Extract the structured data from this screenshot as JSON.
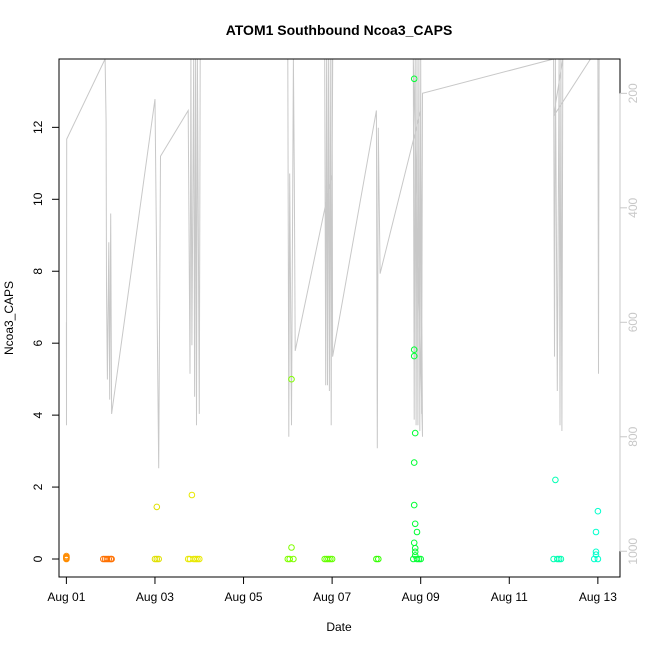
{
  "chart_data": {
    "type": "scatter",
    "title": "ATOM1 Southbound Ncoa3_CAPS",
    "xlabel": "Date",
    "ylabel": "Ncoa3_CAPS",
    "x_range": [
      "2020-07-31T20:00",
      "2020-08-13T12:00"
    ],
    "x_ticks": [
      "2020-08-01",
      "2020-08-03",
      "2020-08-05",
      "2020-08-07",
      "2020-08-09",
      "2020-08-11",
      "2020-08-13"
    ],
    "x_tick_labels": [
      "Aug 01",
      "Aug 03",
      "Aug 05",
      "Aug 07",
      "Aug 09",
      "Aug 11",
      "Aug 13"
    ],
    "y_range": [
      -0.5,
      13.9
    ],
    "y_ticks": [
      0,
      2,
      4,
      6,
      8,
      10,
      12
    ],
    "y2": {
      "reversed": true,
      "range": [
        1045,
        140
      ],
      "ticks": [
        200,
        400,
        600,
        800,
        1000
      ],
      "color": "#c8c8c8"
    },
    "grid": false,
    "depth_trace": {
      "color": "#c8c8c8",
      "points": [
        [
          "2020-08-01T00:00",
          600
        ],
        [
          "2020-08-01T00:05",
          780
        ],
        [
          "2020-08-01T00:10",
          280
        ],
        [
          "2020-08-01T21:00",
          140
        ],
        [
          "2020-08-01T21:30",
          250
        ],
        [
          "2020-08-01T21:45",
          540
        ],
        [
          "2020-08-01T22:15",
          700
        ],
        [
          "2020-08-01T23:00",
          460
        ],
        [
          "2020-08-01T23:30",
          735
        ],
        [
          "2020-08-02T00:00",
          410
        ],
        [
          "2020-08-02T00:30",
          760
        ],
        [
          "2020-08-03T00:00",
          210
        ],
        [
          "2020-08-03T02:00",
          855
        ],
        [
          "2020-08-03T03:00",
          310
        ],
        [
          "2020-08-03T18:00",
          230
        ],
        [
          "2020-08-03T19:00",
          690
        ],
        [
          "2020-08-03T19:30",
          140
        ],
        [
          "2020-08-03T20:00",
          640
        ],
        [
          "2020-08-03T21:00",
          140
        ],
        [
          "2020-08-03T21:30",
          730
        ],
        [
          "2020-08-03T22:00",
          140
        ],
        [
          "2020-08-03T22:30",
          780
        ],
        [
          "2020-08-03T23:00",
          140
        ],
        [
          "2020-08-04T00:00",
          760
        ],
        [
          "2020-08-04T00:30",
          140
        ],
        [
          "2020-08-06T00:00",
          140
        ],
        [
          "2020-08-06T00:30",
          800
        ],
        [
          "2020-08-06T01:00",
          340
        ],
        [
          "2020-08-06T02:00",
          780
        ],
        [
          "2020-08-06T03:00",
          140
        ],
        [
          "2020-08-06T03:30",
          345
        ],
        [
          "2020-08-06T04:00",
          650
        ],
        [
          "2020-08-07T00:00",
          340
        ],
        [
          "2020-08-07T00:20",
          140
        ],
        [
          "2020-08-06T20:00",
          140
        ],
        [
          "2020-08-06T20:30",
          710
        ],
        [
          "2020-08-06T21:00",
          140
        ],
        [
          "2020-08-06T21:30",
          710
        ],
        [
          "2020-08-06T22:00",
          140
        ],
        [
          "2020-08-06T22:30",
          720
        ],
        [
          "2020-08-06T23:00",
          140
        ],
        [
          "2020-08-06T23:30",
          780
        ],
        [
          "2020-08-07T00:00",
          140
        ],
        [
          "2020-08-07T00:15",
          660
        ],
        [
          "2020-08-08T00:00",
          230
        ],
        [
          "2020-08-08T00:30",
          820
        ],
        [
          "2020-08-08T01:00",
          260
        ],
        [
          "2020-08-08T02:00",
          515
        ],
        [
          "2020-08-09T00:00",
          230
        ],
        [
          "2020-08-09T01:00",
          800
        ],
        [
          "2020-08-08T20:00",
          140
        ],
        [
          "2020-08-08T20:30",
          770
        ],
        [
          "2020-08-08T21:00",
          140
        ],
        [
          "2020-08-08T21:30",
          780
        ],
        [
          "2020-08-08T22:00",
          140
        ],
        [
          "2020-08-08T22:30",
          780
        ],
        [
          "2020-08-08T23:00",
          140
        ],
        [
          "2020-08-08T23:30",
          790
        ],
        [
          "2020-08-09T00:00",
          140
        ],
        [
          "2020-08-09T00:30",
          760
        ],
        [
          "2020-08-09T01:00",
          200
        ],
        [
          "2020-08-12T00:00",
          140
        ],
        [
          "2020-08-12T00:30",
          660
        ],
        [
          "2020-08-12T01:00",
          140
        ],
        [
          "2020-08-12T02:00",
          720
        ],
        [
          "2020-08-12T03:00",
          140
        ],
        [
          "2020-08-12T03:30",
          780
        ],
        [
          "2020-08-12T04:00",
          140
        ],
        [
          "2020-08-12T04:30",
          790
        ],
        [
          "2020-08-12T05:00",
          140
        ],
        [
          "2020-08-12T00:00",
          240
        ],
        [
          "2020-08-12T20:00",
          140
        ],
        [
          "2020-08-12T21:00",
          140
        ],
        [
          "2020-08-12T22:00",
          140
        ],
        [
          "2020-08-12T23:00",
          140
        ],
        [
          "2020-08-13T00:00",
          140
        ],
        [
          "2020-08-13T00:20",
          690
        ],
        [
          "2020-08-13T00:40",
          140
        ]
      ]
    },
    "series": [
      {
        "color": "#ff8c00",
        "points": [
          [
            "2020-08-01T00:00",
            0.05
          ],
          [
            "2020-08-01T00:00",
            0.0
          ],
          [
            "2020-08-01T00:00",
            0.02
          ],
          [
            "2020-08-01T00:00",
            0.08
          ],
          [
            "2020-08-01T00:00",
            0.04
          ]
        ]
      },
      {
        "color": "#ff7000",
        "points": [
          [
            "2020-08-01T20:00",
            0.0
          ],
          [
            "2020-08-01T21:00",
            0.0
          ],
          [
            "2020-08-01T22:00",
            0.0
          ],
          [
            "2020-08-01T23:00",
            0.0
          ],
          [
            "2020-08-02T00:00",
            0.0
          ],
          [
            "2020-08-02T00:30",
            0.0
          ]
        ]
      },
      {
        "color": "#e0e000",
        "points": [
          [
            "2020-08-03T00:00",
            0.0
          ],
          [
            "2020-08-03T01:00",
            0.0
          ],
          [
            "2020-08-03T01:00",
            1.45
          ],
          [
            "2020-08-03T02:00",
            0.0
          ]
        ]
      },
      {
        "color": "#e8e800",
        "points": [
          [
            "2020-08-03T18:00",
            0.0
          ],
          [
            "2020-08-03T19:00",
            0.0
          ],
          [
            "2020-08-03T20:00",
            1.78
          ],
          [
            "2020-08-03T21:00",
            0.0
          ],
          [
            "2020-08-03T22:00",
            0.0
          ],
          [
            "2020-08-03T23:00",
            0.0
          ],
          [
            "2020-08-04T00:00",
            0.0
          ]
        ]
      },
      {
        "color": "#80ff00",
        "points": [
          [
            "2020-08-06T00:00",
            0.0
          ],
          [
            "2020-08-06T01:00",
            0.0
          ],
          [
            "2020-08-06T02:00",
            5.0
          ],
          [
            "2020-08-06T02:00",
            0.32
          ],
          [
            "2020-08-06T03:00",
            0.0
          ]
        ]
      },
      {
        "color": "#66ff00",
        "points": [
          [
            "2020-08-06T20:00",
            0.0
          ],
          [
            "2020-08-06T21:00",
            0.0
          ],
          [
            "2020-08-06T22:00",
            0.0
          ],
          [
            "2020-08-06T23:00",
            0.0
          ],
          [
            "2020-08-07T00:00",
            0.0
          ]
        ]
      },
      {
        "color": "#33ff00",
        "points": [
          [
            "2020-08-08T00:00",
            0.0
          ],
          [
            "2020-08-08T01:00",
            0.0
          ]
        ]
      },
      {
        "color": "#00ff33",
        "points": [
          [
            "2020-08-08T20:00",
            0.0
          ],
          [
            "2020-08-08T20:30",
            13.35
          ],
          [
            "2020-08-08T20:30",
            5.82
          ],
          [
            "2020-08-08T20:30",
            5.64
          ],
          [
            "2020-08-08T21:00",
            3.5
          ],
          [
            "2020-08-08T20:30",
            2.68
          ],
          [
            "2020-08-08T20:30",
            1.5
          ],
          [
            "2020-08-08T21:00",
            0.98
          ],
          [
            "2020-08-08T22:00",
            0.75
          ],
          [
            "2020-08-08T20:30",
            0.45
          ],
          [
            "2020-08-08T21:00",
            0.3
          ],
          [
            "2020-08-08T21:00",
            0.2
          ],
          [
            "2020-08-08T21:00",
            0.1
          ],
          [
            "2020-08-08T22:00",
            0.0
          ],
          [
            "2020-08-08T23:00",
            0.0
          ],
          [
            "2020-08-09T00:00",
            0.0
          ]
        ]
      },
      {
        "color": "#00ffb3",
        "points": [
          [
            "2020-08-12T00:00",
            0.0
          ],
          [
            "2020-08-12T01:00",
            2.2
          ],
          [
            "2020-08-12T02:00",
            0.0
          ],
          [
            "2020-08-12T03:00",
            0.0
          ],
          [
            "2020-08-12T04:00",
            0.0
          ]
        ]
      },
      {
        "color": "#00ffcc",
        "points": [
          [
            "2020-08-12T22:00",
            0.0
          ],
          [
            "2020-08-12T23:00",
            0.75
          ],
          [
            "2020-08-13T00:00",
            1.33
          ],
          [
            "2020-08-12T23:00",
            0.2
          ],
          [
            "2020-08-12T23:00",
            0.12
          ],
          [
            "2020-08-13T00:00",
            0.0
          ]
        ]
      }
    ]
  }
}
